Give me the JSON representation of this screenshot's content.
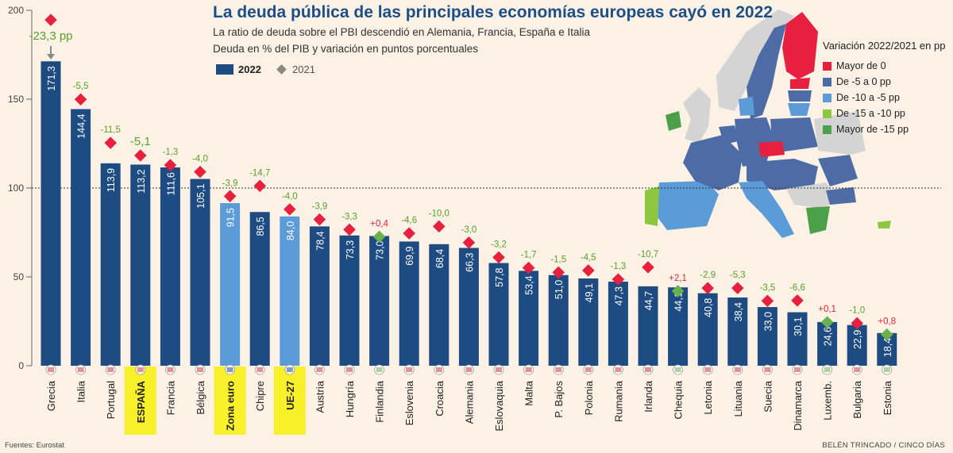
{
  "title": "La deuda pública de las principales economías europeas cayó en 2022",
  "subtitle": "La ratio de deuda sobre el PBI descendió en Alemania, Francia, España e Italia",
  "subtitle2": "Deuda en % del PIB y variación en puntos porcentuales",
  "legend_2022": "2022",
  "legend_2021": "2021",
  "map_legend": {
    "title": "Variación 2022/2021 en pp",
    "items": [
      {
        "label": "Mayor de 0",
        "color": "#e8203f"
      },
      {
        "label": "De -5 a 0 pp",
        "color": "#4d6ba5"
      },
      {
        "label": "De -10 a -5 pp",
        "color": "#5b9bd8"
      },
      {
        "label": "De -15 a -10 pp",
        "color": "#8ec63f"
      },
      {
        "label": "Mayor de -15 pp",
        "color": "#4da04a"
      }
    ]
  },
  "source": "Fuentes: Eurostat",
  "credit": "BELÉN TRINCADO / CINCO DÍAS",
  "colors": {
    "bar": "#1d4b82",
    "bar_aggregate": "#5b9bd8",
    "diamond_red": "#e8203f",
    "diamond_green": "#6ab04c",
    "positive_change": "#e8203f",
    "negative_change": "#5aa02c",
    "highlight": "#f7f02a"
  },
  "chart_data": {
    "type": "bar",
    "y_ticks": [
      0,
      50,
      100,
      150,
      200
    ],
    "ylim": [
      0,
      200
    ],
    "reference_line": 100,
    "categories": [
      "Grecia",
      "Italia",
      "Portugal",
      "ESPAÑA",
      "Francia",
      "Bélgica",
      "Zona euro",
      "Chipre",
      "UE-27",
      "Austria",
      "Hungría",
      "Finlandia",
      "Eslovenia",
      "Croacia",
      "Alemania",
      "Eslovaquia",
      "Malta",
      "P. Bajos",
      "Polonia",
      "Rumania",
      "Irlanda",
      "Chequia",
      "Letonia",
      "Lituania",
      "Suecia",
      "Dinamarca",
      "Luxemb.",
      "Bulgaria",
      "Estonia"
    ],
    "value_labels": [
      "171,3",
      "144,4",
      "113,9",
      "113,2",
      "111,6",
      "105,1",
      "91,5",
      "86,5",
      "84,0",
      "78,4",
      "73,3",
      "73,0",
      "69,9",
      "68,4",
      "66,3",
      "57,8",
      "53,4",
      "51,0",
      "49,1",
      "47,3",
      "44,7",
      "44,1",
      "40,8",
      "38,4",
      "33,0",
      "30,1",
      "24,6",
      "22,9",
      "18,4"
    ],
    "change_labels": [
      "-23,3 pp",
      "-5,5",
      "-11,5",
      "-5,1",
      "-1,3",
      "-4,0",
      "-3,9",
      "-14,7",
      "-4,0",
      "-3,9",
      "-3,3",
      "+0,4",
      "-4,6",
      "-10,0",
      "-3,0",
      "-3,2",
      "-1,7",
      "-1,5",
      "-4,5",
      "-1,3",
      "-10,7",
      "+2,1",
      "-2,9",
      "-5,3",
      "-3,5",
      "-6,6",
      "+0,1",
      "-1,0",
      "+0,8"
    ],
    "series": [
      {
        "name": "2022",
        "values": [
          171.3,
          144.4,
          113.9,
          113.2,
          111.6,
          105.1,
          91.5,
          86.5,
          84.0,
          78.4,
          73.3,
          73.0,
          69.9,
          68.4,
          66.3,
          57.8,
          53.4,
          51.0,
          49.1,
          47.3,
          44.7,
          44.1,
          40.8,
          38.4,
          33.0,
          30.1,
          24.6,
          22.9,
          18.4
        ]
      },
      {
        "name": "2021",
        "values": [
          194.6,
          149.9,
          125.4,
          118.3,
          112.9,
          109.1,
          95.4,
          101.2,
          88.0,
          82.3,
          76.6,
          72.6,
          74.5,
          78.4,
          69.3,
          61.0,
          55.1,
          52.5,
          53.6,
          48.6,
          55.4,
          42.0,
          43.7,
          43.7,
          36.5,
          36.7,
          24.5,
          23.9,
          17.6
        ]
      }
    ],
    "changes": [
      -23.3,
      -5.5,
      -11.5,
      -5.1,
      -1.3,
      -4.0,
      -3.9,
      -14.7,
      -4.0,
      -3.9,
      -3.3,
      0.4,
      -4.6,
      -10.0,
      -3.0,
      -3.2,
      -1.7,
      -1.5,
      -4.5,
      -1.3,
      -10.7,
      2.1,
      -2.9,
      -5.3,
      -3.5,
      -6.6,
      0.1,
      -1.0,
      0.8
    ],
    "highlighted": [
      "ESPAÑA",
      "Zona euro",
      "UE-27"
    ],
    "aggregates": [
      "Zona euro",
      "UE-27"
    ]
  }
}
